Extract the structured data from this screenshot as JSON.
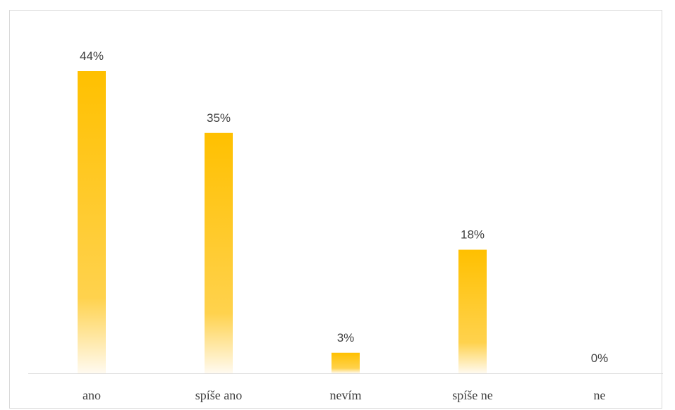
{
  "chart_data": {
    "type": "bar",
    "categories": [
      "ano",
      "spíše ano",
      "nevím",
      "spíše ne",
      "ne"
    ],
    "values": [
      44,
      35,
      3,
      18,
      0
    ],
    "value_labels": [
      "44%",
      "35%",
      "3%",
      "18%",
      "0%"
    ],
    "ylim": [
      0,
      50
    ],
    "grid": false,
    "legend": "none",
    "colors": {
      "bar_top": "#ffc000",
      "bar_mid": "#ffd24d",
      "bar_bottom": "#fffaf0",
      "axis": "#d9d9d9",
      "text": "#404040"
    }
  }
}
